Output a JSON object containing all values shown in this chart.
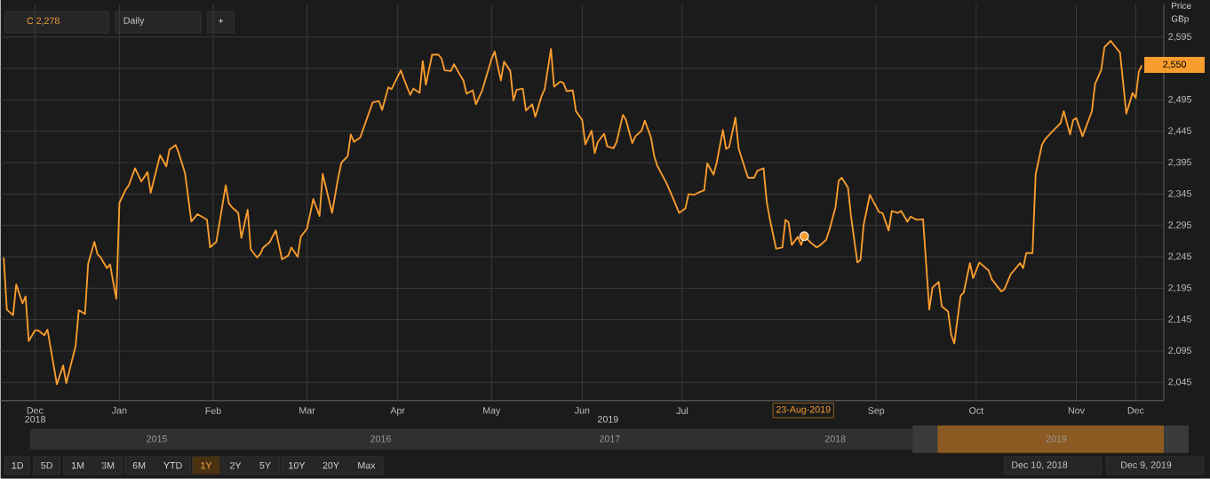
{
  "chart_data": {
    "type": "line",
    "ylabel": "Price GBp",
    "x": [
      "2018-12-10",
      "2018-12-11",
      "2018-12-13",
      "2018-12-14",
      "2018-12-16",
      "2018-12-17",
      "2018-12-18",
      "2018-12-20",
      "2018-12-21",
      "2018-12-23",
      "2018-12-24",
      "2018-12-27",
      "2018-12-29",
      "2018-12-30",
      "2019-01-02",
      "2019-01-03",
      "2019-01-05",
      "2019-01-06",
      "2019-01-08",
      "2019-01-09",
      "2019-01-10",
      "2019-01-12",
      "2019-01-13",
      "2019-01-15",
      "2019-01-16",
      "2019-01-18",
      "2019-01-19",
      "2019-01-21",
      "2019-01-23",
      "2019-01-25",
      "2019-01-26",
      "2019-01-29",
      "2019-01-31",
      "2019-02-01",
      "2019-02-03",
      "2019-02-04",
      "2019-02-06",
      "2019-02-08",
      "2019-02-10",
      "2019-02-13",
      "2019-02-14",
      "2019-02-16",
      "2019-02-19",
      "2019-02-20",
      "2019-02-21",
      "2019-02-23",
      "2019-02-24",
      "2019-02-26",
      "2019-02-27",
      "2019-03-01",
      "2019-03-02",
      "2019-03-03",
      "2019-03-05",
      "2019-03-07",
      "2019-03-09",
      "2019-03-11",
      "2019-03-12",
      "2019-03-14",
      "2019-03-15",
      "2019-03-17",
      "2019-03-19",
      "2019-03-21",
      "2019-03-22",
      "2019-03-24",
      "2019-03-25",
      "2019-03-27",
      "2019-03-28",
      "2019-03-30",
      "2019-03-31",
      "2019-04-01",
      "2019-04-03",
      "2019-04-06",
      "2019-04-07",
      "2019-04-09",
      "2019-04-10",
      "2019-04-12",
      "2019-04-13",
      "2019-04-16",
      "2019-04-17",
      "2019-04-19",
      "2019-04-20",
      "2019-04-22",
      "2019-04-23",
      "2019-04-24",
      "2019-04-26",
      "2019-04-28",
      "2019-04-29",
      "2019-04-30",
      "2019-05-02",
      "2019-05-03",
      "2019-05-05",
      "2019-05-06",
      "2019-05-07",
      "2019-05-09",
      "2019-05-10",
      "2019-05-12",
      "2019-05-15",
      "2019-05-16",
      "2019-05-18",
      "2019-05-19",
      "2019-05-21",
      "2019-05-22",
      "2019-05-23",
      "2019-05-25",
      "2019-05-26",
      "2019-05-28",
      "2019-05-29",
      "2019-05-31",
      "2019-06-01",
      "2019-06-03",
      "2019-06-04",
      "2019-06-06",
      "2019-06-07",
      "2019-06-08",
      "2019-06-10",
      "2019-06-11",
      "2019-06-13",
      "2019-06-14",
      "2019-06-16",
      "2019-06-17",
      "2019-06-18",
      "2019-06-20",
      "2019-06-21",
      "2019-06-23",
      "2019-06-24",
      "2019-06-26",
      "2019-06-27",
      "2019-06-29",
      "2019-06-30",
      "2019-07-02",
      "2019-07-03",
      "2019-07-05",
      "2019-07-06",
      "2019-07-07",
      "2019-07-10",
      "2019-07-12",
      "2019-07-14",
      "2019-07-16",
      "2019-07-17",
      "2019-07-19",
      "2019-07-20",
      "2019-07-22",
      "2019-07-23",
      "2019-07-25",
      "2019-07-26",
      "2019-07-28",
      "2019-07-29",
      "2019-07-30",
      "2019-08-01",
      "2019-08-02",
      "2019-08-05",
      "2019-08-07",
      "2019-08-08",
      "2019-08-10",
      "2019-08-11",
      "2019-08-12",
      "2019-08-14",
      "2019-08-16",
      "2019-08-17",
      "2019-08-18",
      "2019-08-19",
      "2019-08-21",
      "2019-08-22",
      "2019-08-23",
      "2019-08-25",
      "2019-08-27",
      "2019-08-28",
      "2019-08-30",
      "2019-08-31",
      "2019-09-02",
      "2019-09-03",
      "2019-09-04",
      "2019-09-06",
      "2019-09-07",
      "2019-09-09",
      "2019-09-10",
      "2019-09-11",
      "2019-09-13",
      "2019-09-14",
      "2019-09-16",
      "2019-09-17",
      "2019-09-19",
      "2019-09-20",
      "2019-09-22",
      "2019-09-23",
      "2019-09-25",
      "2019-09-26",
      "2019-09-28",
      "2019-09-30",
      "2019-10-02",
      "2019-10-03",
      "2019-10-05",
      "2019-10-06",
      "2019-10-08",
      "2019-10-09",
      "2019-10-10",
      "2019-10-12",
      "2019-10-13",
      "2019-10-15",
      "2019-10-16",
      "2019-10-18",
      "2019-10-21",
      "2019-10-22",
      "2019-10-25",
      "2019-10-26",
      "2019-10-28",
      "2019-10-31",
      "2019-11-01",
      "2019-11-02",
      "2019-11-04",
      "2019-11-05",
      "2019-11-07",
      "2019-11-08",
      "2019-11-10",
      "2019-11-11",
      "2019-11-13",
      "2019-11-14",
      "2019-11-16",
      "2019-11-17",
      "2019-11-18",
      "2019-11-20",
      "2019-11-23",
      "2019-11-24",
      "2019-11-26",
      "2019-11-27",
      "2019-11-29",
      "2019-12-02",
      "2019-12-04",
      "2019-12-06",
      "2019-12-07",
      "2019-12-08",
      "2019-12-09"
    ],
    "series": [
      {
        "type": "scatter",
        "marker": "circle",
        "color": "#f89c2e",
        "x": [
          "2019-08-23"
        ],
        "values": [
          2278
        ]
      },
      {
        "color": "#f89c2e",
        "values": [
          2244,
          2161,
          2152,
          2201,
          2171,
          2182,
          2111,
          2128,
          2128,
          2120,
          2129,
          2042,
          2072,
          2044,
          2103,
          2160,
          2154,
          2234,
          2269,
          2249,
          2244,
          2227,
          2233,
          2178,
          2331,
          2352,
          2359,
          2386,
          2365,
          2380,
          2347,
          2407,
          2389,
          2416,
          2423,
          2410,
          2378,
          2301,
          2313,
          2304,
          2260,
          2269,
          2359,
          2330,
          2324,
          2315,
          2275,
          2320,
          2257,
          2244,
          2249,
          2260,
          2268,
          2287,
          2241,
          2247,
          2260,
          2245,
          2277,
          2290,
          2337,
          2310,
          2377,
          2336,
          2315,
          2372,
          2395,
          2405,
          2440,
          2428,
          2435,
          2477,
          2491,
          2493,
          2479,
          2515,
          2512,
          2542,
          2528,
          2503,
          2513,
          2506,
          2557,
          2519,
          2567,
          2567,
          2561,
          2542,
          2541,
          2552,
          2534,
          2526,
          2505,
          2510,
          2488,
          2510,
          2560,
          2572,
          2526,
          2556,
          2541,
          2494,
          2511,
          2513,
          2478,
          2488,
          2468,
          2501,
          2512,
          2576,
          2516,
          2524,
          2522,
          2509,
          2510,
          2477,
          2463,
          2424,
          2446,
          2410,
          2428,
          2441,
          2421,
          2418,
          2428,
          2471,
          2463,
          2426,
          2437,
          2446,
          2462,
          2435,
          2406,
          2390,
          2362,
          2339,
          2315,
          2322,
          2345,
          2344,
          2347,
          2351,
          2394,
          2376,
          2395,
          2447,
          2417,
          2420,
          2467,
          2418,
          2371,
          2371,
          2382,
          2386,
          2333,
          2305,
          2258,
          2260,
          2304,
          2300,
          2264,
          2277,
          2264,
          2278,
          2268,
          2260,
          2263,
          2272,
          2287,
          2324,
          2366,
          2371,
          2355,
          2308,
          2236,
          2240,
          2296,
          2344,
          2334,
          2316,
          2315,
          2287,
          2318,
          2315,
          2318,
          2301,
          2309,
          2304,
          2305,
          2161,
          2196,
          2205,
          2166,
          2158,
          2121,
          2107,
          2183,
          2188,
          2235,
          2211,
          2236,
          2223,
          2209,
          2190,
          2193,
          2217,
          2235,
          2227,
          2251,
          2251,
          2376,
          2423,
          2432,
          2443,
          2448,
          2458,
          2477,
          2440,
          2463,
          2466,
          2437,
          2477,
          2520,
          2543,
          2579,
          2589,
          2570,
          2473,
          2506,
          2498,
          2540,
          2550
        ]
      }
    ],
    "xlim": [
      "2018-12-09",
      "2019-12-16"
    ],
    "xticks": [
      {
        "value": "2018-12-20",
        "label": "Dec"
      },
      {
        "value": "2019-01-16",
        "label": "Jan"
      },
      {
        "value": "2019-02-15",
        "label": "Feb"
      },
      {
        "value": "2019-03-17",
        "label": "Mar"
      },
      {
        "value": "2019-04-15",
        "label": "Apr"
      },
      {
        "value": "2019-05-15",
        "label": "May"
      },
      {
        "value": "2019-06-13",
        "label": "Jun"
      },
      {
        "value": "2019-07-15",
        "label": "Jul"
      },
      {
        "value": "2019-09-15",
        "label": "Sep"
      },
      {
        "value": "2019-10-17",
        "label": "Oct"
      },
      {
        "value": "2019-11-18",
        "label": "Nov"
      },
      {
        "value": "2019-12-07",
        "label": "Dec"
      }
    ],
    "ylim": [
      2016,
      2647
    ],
    "yticks": [
      {
        "value": 2045,
        "label": "2,045"
      },
      {
        "value": 2095,
        "label": "2,095"
      },
      {
        "value": 2145,
        "label": "2,145"
      },
      {
        "value": 2195,
        "label": "2,195"
      },
      {
        "value": 2245,
        "label": "2,245"
      },
      {
        "value": 2295,
        "label": "2,295"
      },
      {
        "value": 2345,
        "label": "2,345"
      },
      {
        "value": 2395,
        "label": "2,395"
      },
      {
        "value": 2445,
        "label": "2,445"
      },
      {
        "value": 2495,
        "label": "2,495"
      },
      {
        "value": 2545,
        "label": null
      },
      {
        "value": 2595,
        "label": "2,595"
      }
    ],
    "grid": true,
    "marker": "none",
    "line_style": "solid",
    "annotations": [
      "C 2,278",
      "Daily",
      "+",
      "2015",
      "2016",
      "2017",
      "2018",
      "2019",
      "1D",
      "5D",
      "1M",
      "3M",
      "6M",
      "YTD",
      "1Y",
      "2Y",
      "5Y",
      "10Y",
      "20Y",
      "Max",
      "Dec 10, 2018",
      "Dec 9, 2019",
      "2018",
      "2019",
      "23-Aug-2019",
      "2,550"
    ]
  }
}
